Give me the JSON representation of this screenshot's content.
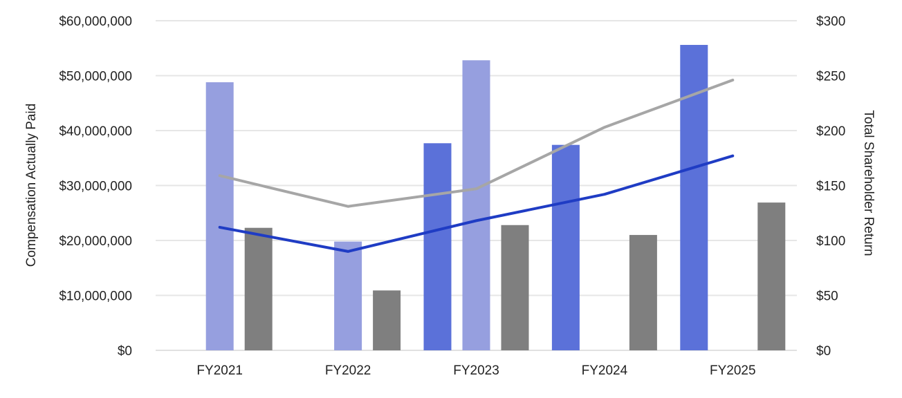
{
  "chart_data": {
    "type": "bar",
    "title": "",
    "categories": [
      "FY2021",
      "FY2022",
      "FY2023",
      "FY2024",
      "FY2025"
    ],
    "ylabel": "Compensation Actually Paid",
    "y2label": "Total Shareholder Return",
    "ylim": [
      0,
      60000000
    ],
    "y2lim": [
      0,
      300
    ],
    "yticks": [
      "$0",
      "$10,000,000",
      "$20,000,000",
      "$30,000,000",
      "$40,000,000",
      "$50,000,000",
      "$60,000,000"
    ],
    "y2ticks": [
      "$0",
      "$50",
      "$100",
      "$150",
      "$200",
      "$250",
      "$300"
    ],
    "grid": true,
    "legend": "none",
    "bar_series": [
      {
        "color": "#5b71d9",
        "values": [
          null,
          null,
          37700000,
          37400000,
          55600000
        ]
      },
      {
        "color": "#969fdf",
        "values": [
          48800000,
          19800000,
          52800000,
          null,
          null
        ]
      },
      {
        "color": "#7f7f7f",
        "values": [
          22300000,
          10900000,
          22800000,
          21000000,
          26900000
        ]
      }
    ],
    "line_series": [
      {
        "color": "#a6a6a6",
        "axis": "right",
        "values": [
          159,
          131,
          147,
          203,
          246
        ]
      },
      {
        "color": "#1f3cc4",
        "axis": "right",
        "values": [
          112,
          90,
          118,
          142,
          177
        ]
      }
    ]
  }
}
